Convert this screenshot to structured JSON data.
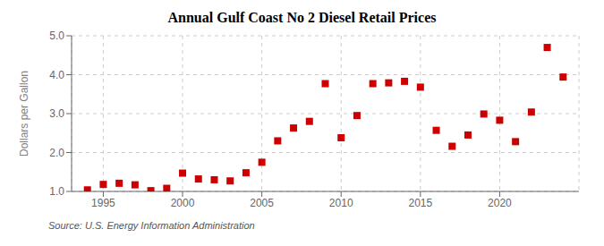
{
  "chart_data": {
    "type": "scatter",
    "title": "Annual Gulf Coast No 2 Diesel Retail Prices",
    "ylabel": "Dollars per Gallon",
    "annotations": [
      "Source: U.S. Energy Information Administration"
    ],
    "x": [
      1994,
      1995,
      1996,
      1997,
      1998,
      1999,
      2000,
      2001,
      2002,
      2003,
      2004,
      2005,
      2006,
      2007,
      2008,
      2009,
      2010,
      2011,
      2012,
      2013,
      2014,
      2015,
      2016,
      2017,
      2018,
      2019,
      2020,
      2021,
      2022,
      2023,
      2024
    ],
    "values": [
      1.04,
      1.18,
      1.21,
      1.17,
      1.02,
      1.08,
      1.47,
      1.32,
      1.3,
      1.27,
      1.48,
      1.75,
      2.3,
      2.63,
      2.8,
      3.77,
      2.38,
      2.95,
      3.77,
      3.79,
      3.83,
      3.68,
      2.57,
      2.16,
      2.45,
      2.99,
      2.83,
      2.28,
      3.04,
      4.7,
      3.94
    ],
    "color": "#cc0000",
    "marker": "square",
    "xlim": [
      1993,
      2025
    ],
    "xticks": [
      1995,
      2000,
      2005,
      2010,
      2015,
      2020
    ],
    "ylim": [
      1.0,
      5.0
    ],
    "yticks": [
      {
        "value": 1.0,
        "label": "1.0"
      },
      {
        "value": 2.0,
        "label": "2.0"
      },
      {
        "value": 3.0,
        "label": "3.0"
      },
      {
        "value": 4.0,
        "label": "4.0"
      },
      {
        "value": 5.0,
        "label": "5.0"
      }
    ],
    "grid": true
  }
}
